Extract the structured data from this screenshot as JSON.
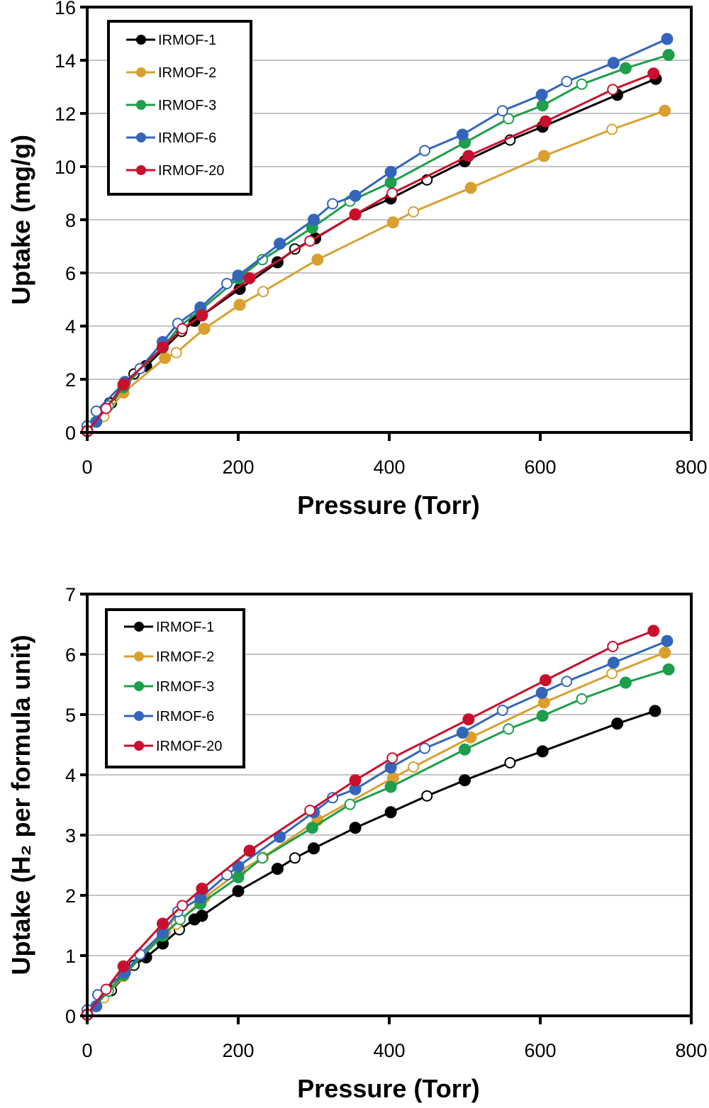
{
  "chart_data": [
    {
      "type": "line",
      "xlabel": "Pressure (Torr)",
      "ylabel": "Uptake (mg/g)",
      "xlim": [
        0,
        800
      ],
      "ylim": [
        0,
        16
      ],
      "xticks": [
        0,
        200,
        400,
        600,
        800
      ],
      "yticks": [
        0,
        2,
        4,
        6,
        8,
        10,
        12,
        14,
        16
      ],
      "grid": "horizontal",
      "legend_position": "top-left",
      "series": [
        {
          "name": "IRMOF-1",
          "color": "#000000",
          "adsorption": [
            [
              0,
              0.05
            ],
            [
              30,
              1.1
            ],
            [
              78,
              2.5
            ],
            [
              142,
              4.2
            ],
            [
              202,
              5.4
            ],
            [
              252,
              6.4
            ],
            [
              302,
              7.3
            ],
            [
              355,
              8.2
            ],
            [
              402,
              8.8
            ],
            [
              500,
              10.2
            ],
            [
              603,
              11.5
            ],
            [
              702,
              12.7
            ],
            [
              753,
              13.3
            ]
          ],
          "desorption": [
            [
              450,
              9.5
            ],
            [
              560,
              11.0
            ],
            [
              275,
              6.9
            ],
            [
              62,
              2.2
            ],
            [
              125,
              3.8
            ],
            [
              32,
              1.1
            ]
          ]
        },
        {
          "name": "IRMOF-2",
          "color": "#D9A030",
          "adsorption": [
            [
              0,
              0.05
            ],
            [
              48,
              1.5
            ],
            [
              103,
              2.8
            ],
            [
              155,
              3.9
            ],
            [
              202,
              4.8
            ],
            [
              305,
              6.5
            ],
            [
              405,
              7.9
            ],
            [
              508,
              9.2
            ],
            [
              605,
              10.4
            ],
            [
              765,
              12.1
            ]
          ],
          "desorption": [
            [
              695,
              11.4
            ],
            [
              432,
              8.3
            ],
            [
              233,
              5.3
            ],
            [
              118,
              3.0
            ],
            [
              22,
              0.6
            ]
          ]
        },
        {
          "name": "IRMOF-3",
          "color": "#1E9E4A",
          "adsorption": [
            [
              0,
              0.05
            ],
            [
              48,
              1.7
            ],
            [
              100,
              3.2
            ],
            [
              150,
              4.6
            ],
            [
              200,
              5.8
            ],
            [
              298,
              7.7
            ],
            [
              402,
              9.4
            ],
            [
              500,
              10.9
            ],
            [
              603,
              12.3
            ],
            [
              713,
              13.7
            ],
            [
              770,
              14.2
            ]
          ],
          "desorption": [
            [
              655,
              13.1
            ],
            [
              558,
              11.8
            ],
            [
              348,
              8.7
            ],
            [
              232,
              6.5
            ],
            [
              123,
              4.0
            ],
            [
              28,
              1.0
            ]
          ]
        },
        {
          "name": "IRMOF-6",
          "color": "#3366BB",
          "adsorption": [
            [
              0,
              0.05
            ],
            [
              12,
              0.4
            ],
            [
              50,
              1.9
            ],
            [
              100,
              3.4
            ],
            [
              150,
              4.7
            ],
            [
              200,
              5.9
            ],
            [
              255,
              7.1
            ],
            [
              300,
              8.0
            ],
            [
              355,
              8.9
            ],
            [
              402,
              9.8
            ],
            [
              497,
              11.2
            ],
            [
              602,
              12.7
            ],
            [
              697,
              13.9
            ],
            [
              768,
              14.8
            ]
          ],
          "desorption": [
            [
              635,
              13.2
            ],
            [
              550,
              12.1
            ],
            [
              447,
              10.6
            ],
            [
              325,
              8.6
            ],
            [
              185,
              5.6
            ],
            [
              120,
              4.1
            ],
            [
              70,
              2.4
            ],
            [
              12,
              0.8
            ],
            [
              0,
              0.25
            ]
          ]
        },
        {
          "name": "IRMOF-20",
          "color": "#C8102E",
          "adsorption": [
            [
              0,
              0.05
            ],
            [
              48,
              1.8
            ],
            [
              100,
              3.2
            ],
            [
              152,
              4.4
            ],
            [
              215,
              5.8
            ],
            [
              355,
              8.2
            ],
            [
              505,
              10.4
            ],
            [
              607,
              11.7
            ],
            [
              750,
              13.5
            ]
          ],
          "desorption": [
            [
              696,
              12.9
            ],
            [
              404,
              9.0
            ],
            [
              295,
              7.2
            ],
            [
              126,
              3.9
            ],
            [
              25,
              0.9
            ],
            [
              0,
              0.05
            ]
          ]
        }
      ]
    },
    {
      "type": "line",
      "xlabel": "Pressure (Torr)",
      "ylabel": "Uptake (H₂ per formula unit)",
      "xlim": [
        0,
        800
      ],
      "ylim": [
        0,
        7
      ],
      "xticks": [
        0,
        200,
        400,
        600,
        800
      ],
      "yticks": [
        0,
        1,
        2,
        3,
        4,
        5,
        6,
        7
      ],
      "grid": "horizontal",
      "legend_position": "top-left",
      "series": [
        {
          "name": "IRMOF-1",
          "color": "#000000",
          "adsorption": [
            [
              0,
              0.02
            ],
            [
              30,
              0.42
            ],
            [
              78,
              0.97
            ],
            [
              100,
              1.2
            ],
            [
              142,
              1.6
            ],
            [
              152,
              1.66
            ],
            [
              200,
              2.07
            ],
            [
              252,
              2.44
            ],
            [
              300,
              2.78
            ],
            [
              355,
              3.12
            ],
            [
              402,
              3.38
            ],
            [
              500,
              3.91
            ],
            [
              603,
              4.39
            ],
            [
              702,
              4.85
            ],
            [
              752,
              5.06
            ]
          ],
          "desorption": [
            [
              560,
              4.2
            ],
            [
              450,
              3.65
            ],
            [
              275,
              2.62
            ],
            [
              122,
              1.43
            ],
            [
              62,
              0.84
            ],
            [
              32,
              0.42
            ]
          ]
        },
        {
          "name": "IRMOF-2",
          "color": "#D9A030",
          "adsorption": [
            [
              0,
              0.02
            ],
            [
              48,
              0.66
            ],
            [
              103,
              1.4
            ],
            [
              155,
              1.96
            ],
            [
              202,
              2.4
            ],
            [
              305,
              3.25
            ],
            [
              405,
              3.95
            ],
            [
              508,
              4.62
            ],
            [
              605,
              5.2
            ],
            [
              765,
              6.03
            ]
          ],
          "desorption": [
            [
              695,
              5.68
            ],
            [
              432,
              4.13
            ],
            [
              233,
              2.63
            ],
            [
              118,
              1.52
            ],
            [
              22,
              0.3
            ]
          ]
        },
        {
          "name": "IRMOF-3",
          "color": "#1E9E4A",
          "adsorption": [
            [
              0,
              0.02
            ],
            [
              48,
              0.68
            ],
            [
              100,
              1.33
            ],
            [
              150,
              1.86
            ],
            [
              200,
              2.3
            ],
            [
              298,
              3.12
            ],
            [
              402,
              3.8
            ],
            [
              500,
              4.42
            ],
            [
              603,
              4.98
            ],
            [
              713,
              5.53
            ],
            [
              770,
              5.75
            ]
          ],
          "desorption": [
            [
              655,
              5.26
            ],
            [
              558,
              4.76
            ],
            [
              348,
              3.51
            ],
            [
              232,
              2.62
            ],
            [
              123,
              1.6
            ],
            [
              28,
              0.41
            ]
          ]
        },
        {
          "name": "IRMOF-6",
          "color": "#3366BB",
          "adsorption": [
            [
              0,
              0.02
            ],
            [
              12,
              0.16
            ],
            [
              50,
              0.72
            ],
            [
              100,
              1.38
            ],
            [
              150,
              1.96
            ],
            [
              200,
              2.48
            ],
            [
              255,
              2.97
            ],
            [
              300,
              3.38
            ],
            [
              355,
              3.76
            ],
            [
              402,
              4.12
            ],
            [
              497,
              4.7
            ],
            [
              602,
              5.36
            ],
            [
              697,
              5.86
            ],
            [
              768,
              6.22
            ]
          ],
          "desorption": [
            [
              635,
              5.55
            ],
            [
              550,
              5.07
            ],
            [
              447,
              4.44
            ],
            [
              325,
              3.62
            ],
            [
              185,
              2.34
            ],
            [
              120,
              1.73
            ],
            [
              70,
              1.02
            ],
            [
              14,
              0.35
            ],
            [
              0,
              0.1
            ]
          ]
        },
        {
          "name": "IRMOF-20",
          "color": "#C8102E",
          "adsorption": [
            [
              0,
              0.02
            ],
            [
              48,
              0.82
            ],
            [
              100,
              1.53
            ],
            [
              152,
              2.11
            ],
            [
              215,
              2.74
            ],
            [
              355,
              3.91
            ],
            [
              505,
              4.92
            ],
            [
              607,
              5.57
            ],
            [
              750,
              6.39
            ]
          ],
          "desorption": [
            [
              696,
              6.13
            ],
            [
              404,
              4.28
            ],
            [
              295,
              3.41
            ],
            [
              126,
              1.83
            ],
            [
              25,
              0.44
            ],
            [
              0,
              0.02
            ]
          ]
        }
      ]
    }
  ]
}
